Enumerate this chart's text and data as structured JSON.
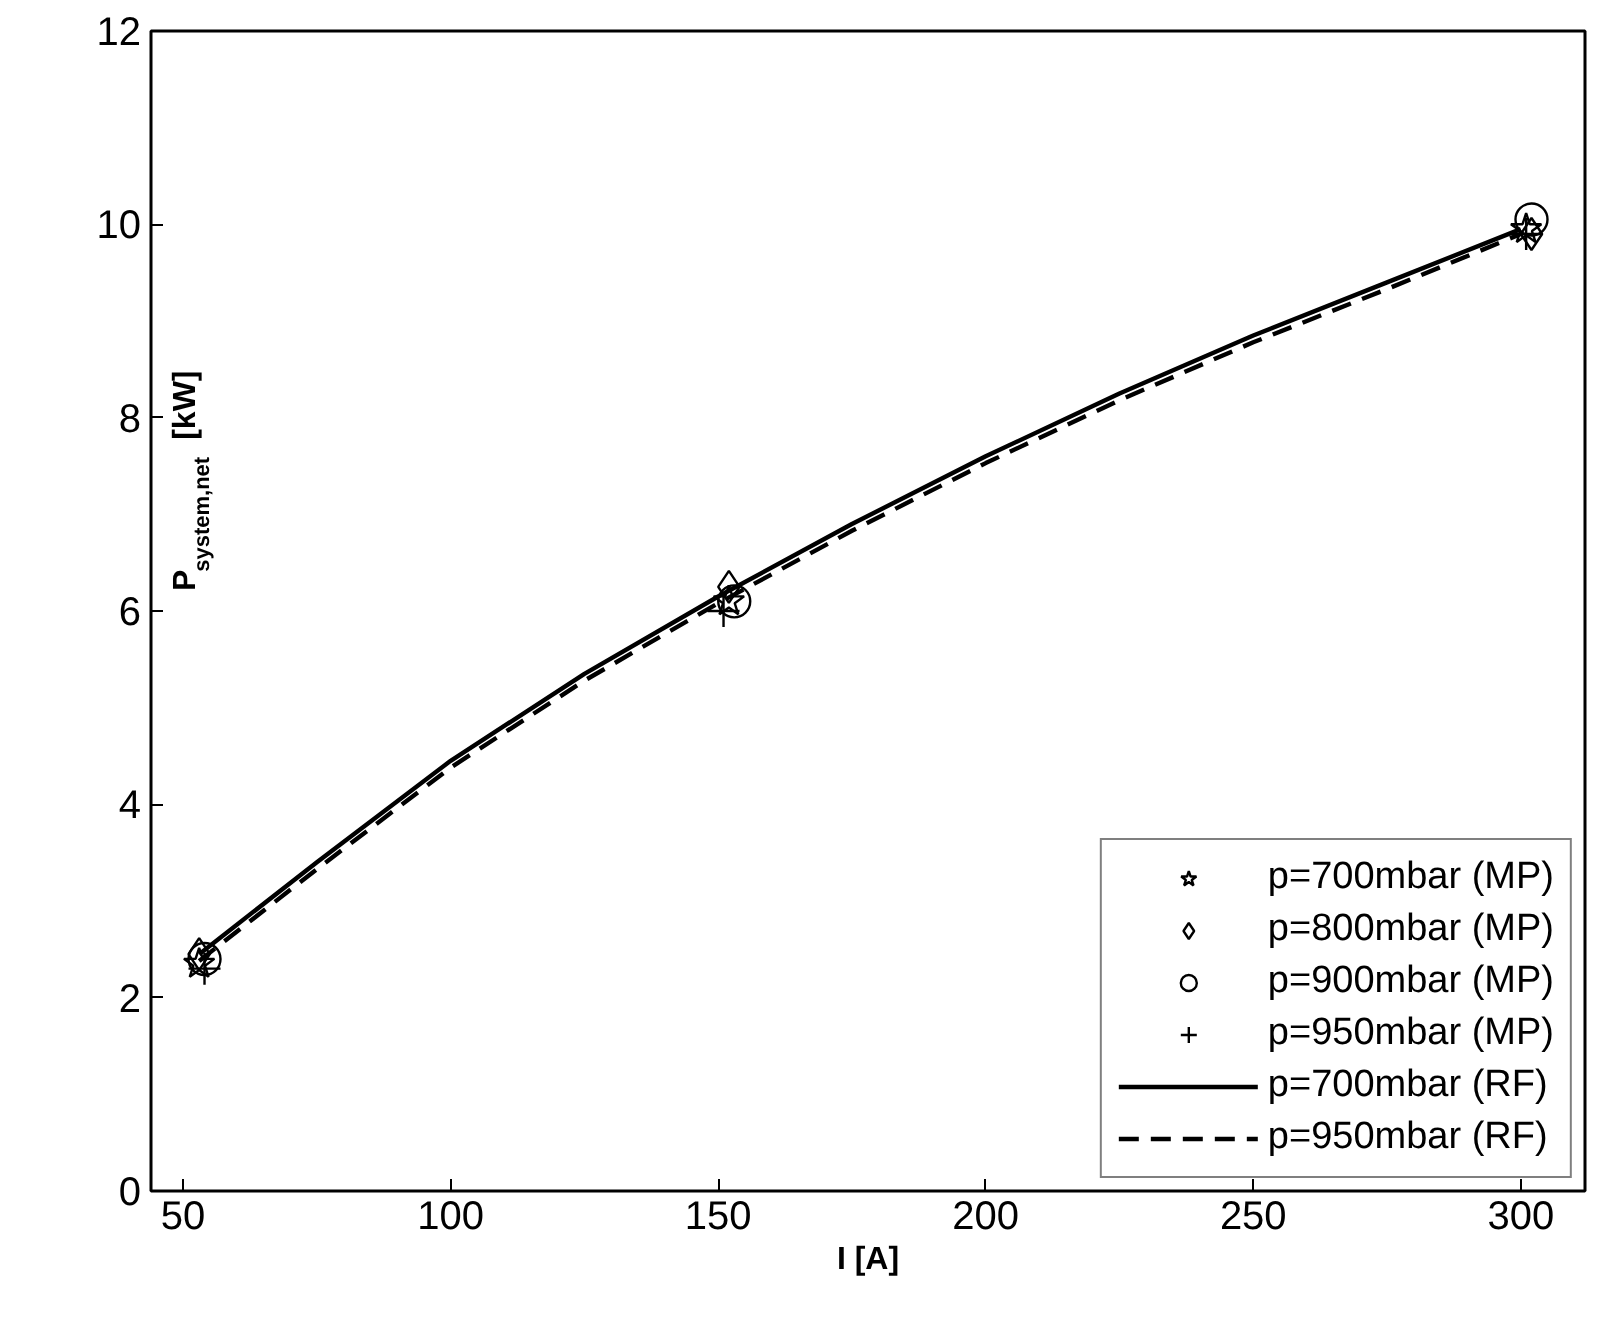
{
  "chart_data": {
    "type": "line",
    "xlabel": "I [A]",
    "ylabel": "P$_{system,net}$ [kW]",
    "xlim": [
      44,
      312
    ],
    "ylim": [
      0,
      12
    ],
    "xticks": [
      50,
      100,
      150,
      200,
      250,
      300
    ],
    "yticks": [
      0,
      2,
      4,
      6,
      8,
      10,
      12
    ],
    "grid": false,
    "legend": "bottom right",
    "series": [
      {
        "name": "p=700mbar (MP)",
        "type": "scatter",
        "marker": "star",
        "color": "#000000",
        "x": [
          53,
          152,
          301
        ],
        "values": [
          2.35,
          6.1,
          9.95
        ]
      },
      {
        "name": "p=800mbar (MP)",
        "type": "scatter",
        "marker": "diamond",
        "color": "#000000",
        "x": [
          53,
          152,
          302
        ],
        "values": [
          2.45,
          6.25,
          9.9
        ]
      },
      {
        "name": "p=900mbar (MP)",
        "type": "scatter",
        "marker": "circle",
        "color": "#000000",
        "x": [
          54,
          153,
          302
        ],
        "values": [
          2.4,
          6.1,
          10.05
        ]
      },
      {
        "name": "p=950mbar (MP)",
        "type": "scatter",
        "marker": "cross",
        "color": "#000000",
        "x": [
          54,
          151,
          301
        ],
        "values": [
          2.3,
          6.0,
          9.9
        ]
      },
      {
        "name": "p=700mbar (RF)",
        "line_style": "solid",
        "color": "#000000",
        "x": [
          53,
          75,
          100,
          125,
          150,
          175,
          200,
          225,
          250,
          275,
          300
        ],
        "values": [
          2.45,
          3.4,
          4.45,
          5.35,
          6.15,
          6.9,
          7.6,
          8.25,
          8.85,
          9.4,
          9.95
        ]
      },
      {
        "name": "p=950mbar (RF)",
        "line_style": "dashed",
        "color": "#000000",
        "x": [
          53,
          75,
          100,
          125,
          150,
          175,
          200,
          225,
          250,
          275,
          300
        ],
        "values": [
          2.38,
          3.33,
          4.38,
          5.28,
          6.08,
          6.83,
          7.53,
          8.18,
          8.78,
          9.33,
          9.9
        ]
      }
    ]
  }
}
